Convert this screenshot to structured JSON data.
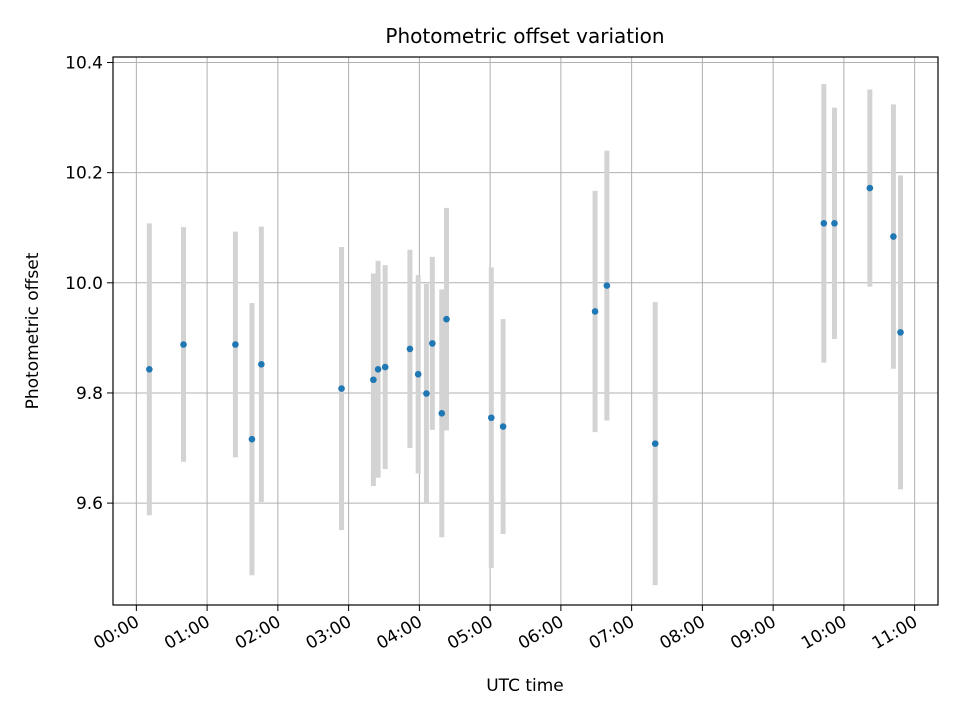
{
  "chart_data": {
    "type": "scatter",
    "title": "Photometric offset variation",
    "xlabel": "UTC time",
    "ylabel": "Photometric offset",
    "x_ticks": [
      "00:00",
      "01:00",
      "02:00",
      "03:00",
      "04:00",
      "05:00",
      "06:00",
      "07:00",
      "08:00",
      "09:00",
      "10:00",
      "11:00"
    ],
    "y_ticks": [
      "9.6",
      "9.8",
      "10.0",
      "10.2",
      "10.4"
    ],
    "xlim_hours": [
      -0.33,
      11.33
    ],
    "ylim": [
      9.415,
      10.41
    ],
    "grid": true,
    "point_color": "#1f77b4",
    "errorbar_color": "#d3d3d3",
    "points": [
      {
        "t": "00:11",
        "y": 9.843,
        "err": 0.265
      },
      {
        "t": "00:40",
        "y": 9.888,
        "err": 0.213
      },
      {
        "t": "01:24",
        "y": 9.888,
        "err": 0.205
      },
      {
        "t": "01:38",
        "y": 9.716,
        "err": 0.247
      },
      {
        "t": "01:46",
        "y": 9.852,
        "err": 0.25
      },
      {
        "t": "02:54",
        "y": 9.808,
        "err": 0.257
      },
      {
        "t": "03:21",
        "y": 9.824,
        "err": 0.193
      },
      {
        "t": "03:25",
        "y": 9.843,
        "err": 0.197
      },
      {
        "t": "03:31",
        "y": 9.847,
        "err": 0.185
      },
      {
        "t": "03:52",
        "y": 9.88,
        "err": 0.18
      },
      {
        "t": "03:59",
        "y": 9.834,
        "err": 0.18
      },
      {
        "t": "04:06",
        "y": 9.799,
        "err": 0.199
      },
      {
        "t": "04:11",
        "y": 9.89,
        "err": 0.157
      },
      {
        "t": "04:19",
        "y": 9.763,
        "err": 0.225
      },
      {
        "t": "04:23",
        "y": 9.934,
        "err": 0.202
      },
      {
        "t": "05:01",
        "y": 9.755,
        "err": 0.273
      },
      {
        "t": "05:11",
        "y": 9.739,
        "err": 0.195
      },
      {
        "t": "06:29",
        "y": 9.948,
        "err": 0.219
      },
      {
        "t": "06:39",
        "y": 9.995,
        "err": 0.245
      },
      {
        "t": "07:20",
        "y": 9.708,
        "err": 0.257
      },
      {
        "t": "09:43",
        "y": 10.108,
        "err": 0.253
      },
      {
        "t": "09:52",
        "y": 10.108,
        "err": 0.21
      },
      {
        "t": "10:22",
        "y": 10.172,
        "err": 0.179
      },
      {
        "t": "10:42",
        "y": 10.084,
        "err": 0.24
      },
      {
        "t": "10:48",
        "y": 9.91,
        "err": 0.285
      }
    ]
  }
}
